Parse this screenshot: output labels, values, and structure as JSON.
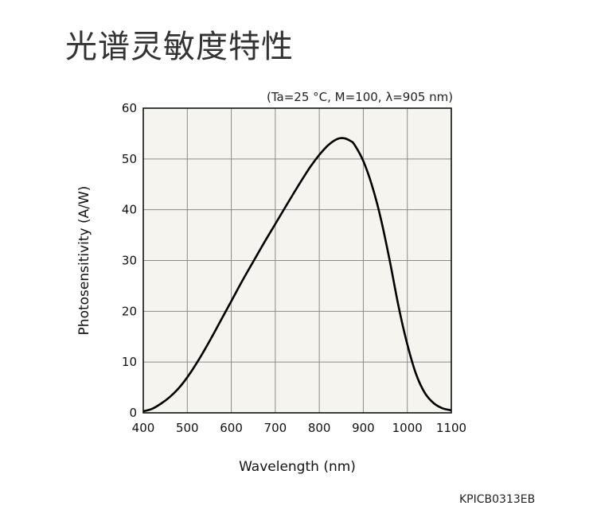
{
  "page": {
    "title": "光谱灵敏度特性",
    "conditions": "(Ta=25 °C, M=100, λ=905 nm)",
    "doc_code": "KPICB0313EB"
  },
  "colors": {
    "plot_background": "#f5f4ee",
    "grid": "#8a8a8a",
    "curve": "#000000"
  },
  "chart_data": {
    "type": "line",
    "xlabel": "Wavelength (nm)",
    "ylabel": "Photosensitivity (A/W)",
    "xlim": [
      400,
      1100
    ],
    "ylim": [
      0,
      60
    ],
    "x_ticks": [
      400,
      500,
      600,
      700,
      800,
      900,
      1000,
      1100
    ],
    "y_ticks": [
      0,
      10,
      20,
      30,
      40,
      50,
      60
    ],
    "grid": true,
    "series": [
      {
        "x": [
          400,
          420,
          440,
          460,
          480,
          500,
          520,
          540,
          560,
          580,
          600,
          620,
          640,
          660,
          680,
          700,
          720,
          740,
          760,
          780,
          800,
          820,
          840,
          855,
          870,
          880,
          900,
          920,
          940,
          960,
          980,
          1000,
          1020,
          1040,
          1060,
          1080,
          1100
        ],
        "y": [
          0.3,
          0.8,
          1.8,
          3.1,
          4.8,
          7.0,
          9.6,
          12.5,
          15.6,
          18.8,
          22.0,
          25.2,
          28.3,
          31.3,
          34.3,
          37.2,
          40.1,
          43.0,
          45.8,
          48.5,
          50.8,
          52.7,
          53.9,
          54.1,
          53.6,
          52.8,
          49.6,
          44.7,
          38.2,
          30.0,
          21.0,
          13.5,
          7.6,
          3.9,
          1.9,
          0.9,
          0.5
        ]
      }
    ]
  }
}
